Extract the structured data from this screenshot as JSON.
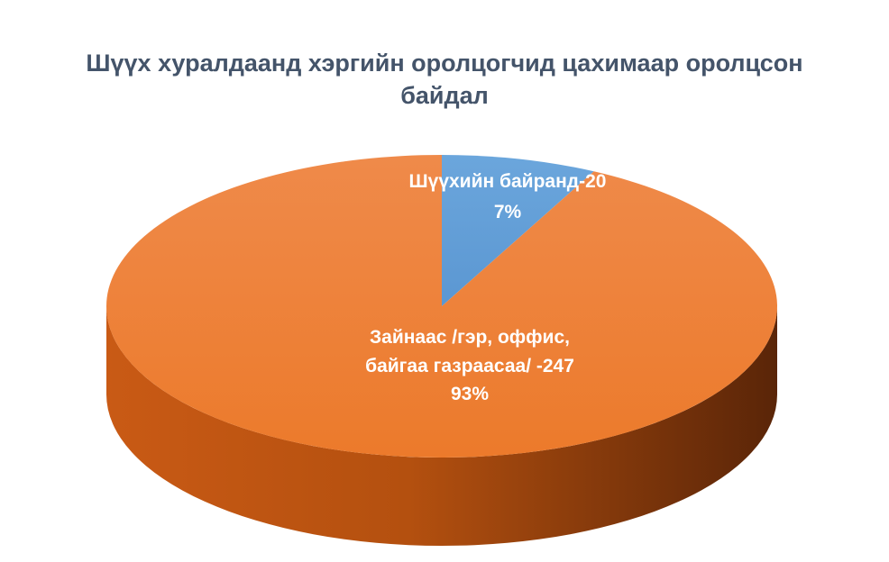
{
  "chart_data": {
    "type": "pie",
    "title_lines": [
      "Шүүх хуралдаанд хэргийн оролцогчид цахимаар оролцсон",
      "байдал"
    ],
    "slices": [
      {
        "name": "Шүүхийн байранд",
        "value": 20,
        "percent": "7%",
        "color": "#5b9bd5",
        "label_lines": [
          "Шүүхийн байранд-20",
          "7%"
        ]
      },
      {
        "name": "Зайнаас /гэр, оффис, байгаа газраасаа/",
        "value": 247,
        "percent": "93%",
        "color": "#ed7d31",
        "label_lines": [
          "Зайнаас /гэр, оффис,",
          "байгаа газраасаа/ -247",
          "93%"
        ]
      }
    ],
    "style": "3d"
  }
}
